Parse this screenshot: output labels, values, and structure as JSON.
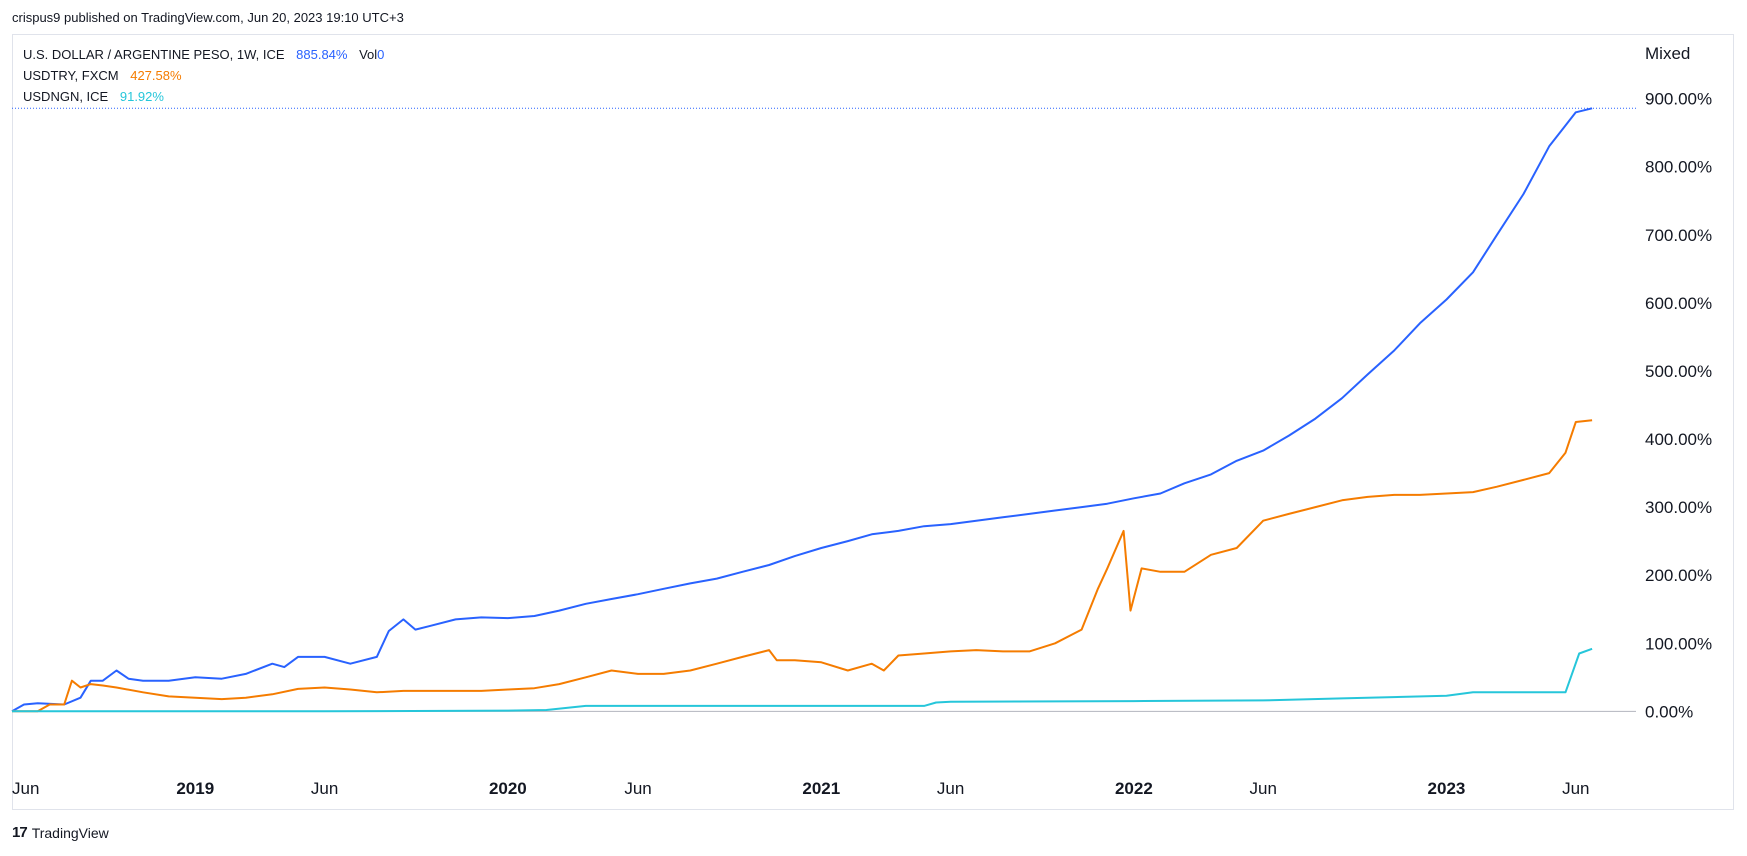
{
  "header": {
    "published_text": "crispus9 published on TradingView.com, Jun 20, 2023 19:10 UTC+3"
  },
  "legend": [
    {
      "label": "U.S. DOLLAR / ARGENTINE PESO, 1W, ICE",
      "value": "885.84%",
      "extra": "Vol",
      "extra_value": "0",
      "color": "#2962ff"
    },
    {
      "label": "USDTRY, FXCM",
      "value": "427.58%",
      "color": "#f57c00"
    },
    {
      "label": "USDNGN, ICE",
      "value": "91.92%",
      "color": "#26c6da"
    }
  ],
  "scale_mode": "Mixed",
  "footer": {
    "brand": "TradingView",
    "logo_icon": "tradingview-logo-icon"
  },
  "chart_data": {
    "type": "line",
    "y_unit": "%",
    "ylim": [
      -95,
      995
    ],
    "y_ticks": [
      "0.00%",
      "100.00%",
      "200.00%",
      "300.00%",
      "400.00%",
      "500.00%",
      "600.00%",
      "700.00%",
      "800.00%",
      "900.00%"
    ],
    "x_range": [
      "2018-06-01",
      "2023-06-20"
    ],
    "x_ticks": [
      {
        "date": "2018-06-01",
        "label": "Jun",
        "bold": false
      },
      {
        "date": "2019-01-01",
        "label": "2019",
        "bold": true
      },
      {
        "date": "2019-06-01",
        "label": "Jun",
        "bold": false
      },
      {
        "date": "2020-01-01",
        "label": "2020",
        "bold": true
      },
      {
        "date": "2020-06-01",
        "label": "Jun",
        "bold": false
      },
      {
        "date": "2021-01-01",
        "label": "2021",
        "bold": true
      },
      {
        "date": "2021-06-01",
        "label": "Jun",
        "bold": false
      },
      {
        "date": "2022-01-01",
        "label": "2022",
        "bold": true
      },
      {
        "date": "2022-06-01",
        "label": "Jun",
        "bold": false
      },
      {
        "date": "2023-01-01",
        "label": "2023",
        "bold": true
      },
      {
        "date": "2023-06-01",
        "label": "Jun",
        "bold": false
      }
    ],
    "zero_line": true,
    "series": [
      {
        "name": "U.S. DOLLAR / ARGENTINE PESO, 1W, ICE",
        "color": "#2962ff",
        "last_value": 885.84,
        "points": [
          [
            "2018-06-01",
            0
          ],
          [
            "2018-06-15",
            10
          ],
          [
            "2018-07-01",
            12
          ],
          [
            "2018-08-01",
            10
          ],
          [
            "2018-08-20",
            20
          ],
          [
            "2018-09-01",
            45
          ],
          [
            "2018-09-15",
            45
          ],
          [
            "2018-10-01",
            60
          ],
          [
            "2018-10-15",
            48
          ],
          [
            "2018-11-01",
            45
          ],
          [
            "2018-12-01",
            45
          ],
          [
            "2019-01-01",
            50
          ],
          [
            "2019-02-01",
            48
          ],
          [
            "2019-03-01",
            55
          ],
          [
            "2019-04-01",
            70
          ],
          [
            "2019-04-15",
            65
          ],
          [
            "2019-05-01",
            80
          ],
          [
            "2019-06-01",
            80
          ],
          [
            "2019-07-01",
            70
          ],
          [
            "2019-08-01",
            80
          ],
          [
            "2019-08-15",
            118
          ],
          [
            "2019-09-01",
            135
          ],
          [
            "2019-09-15",
            120
          ],
          [
            "2019-10-01",
            125
          ],
          [
            "2019-11-01",
            135
          ],
          [
            "2019-12-01",
            138
          ],
          [
            "2020-01-01",
            137
          ],
          [
            "2020-02-01",
            140
          ],
          [
            "2020-03-01",
            148
          ],
          [
            "2020-04-01",
            158
          ],
          [
            "2020-05-01",
            165
          ],
          [
            "2020-06-01",
            172
          ],
          [
            "2020-07-01",
            180
          ],
          [
            "2020-08-01",
            188
          ],
          [
            "2020-09-01",
            195
          ],
          [
            "2020-10-01",
            205
          ],
          [
            "2020-11-01",
            215
          ],
          [
            "2020-12-01",
            228
          ],
          [
            "2021-01-01",
            240
          ],
          [
            "2021-02-01",
            250
          ],
          [
            "2021-03-01",
            260
          ],
          [
            "2021-04-01",
            265
          ],
          [
            "2021-05-01",
            272
          ],
          [
            "2021-06-01",
            275
          ],
          [
            "2021-07-01",
            280
          ],
          [
            "2021-08-01",
            285
          ],
          [
            "2021-09-01",
            290
          ],
          [
            "2021-10-01",
            295
          ],
          [
            "2021-11-01",
            300
          ],
          [
            "2021-12-01",
            305
          ],
          [
            "2022-01-01",
            313
          ],
          [
            "2022-02-01",
            320
          ],
          [
            "2022-03-01",
            335
          ],
          [
            "2022-04-01",
            348
          ],
          [
            "2022-05-01",
            368
          ],
          [
            "2022-06-01",
            383
          ],
          [
            "2022-07-01",
            405
          ],
          [
            "2022-08-01",
            430
          ],
          [
            "2022-09-01",
            460
          ],
          [
            "2022-10-01",
            495
          ],
          [
            "2022-11-01",
            530
          ],
          [
            "2022-12-01",
            570
          ],
          [
            "2023-01-01",
            605
          ],
          [
            "2023-02-01",
            645
          ],
          [
            "2023-03-01",
            700
          ],
          [
            "2023-04-01",
            760
          ],
          [
            "2023-05-01",
            830
          ],
          [
            "2023-06-01",
            880
          ],
          [
            "2023-06-20",
            885.84
          ]
        ]
      },
      {
        "name": "USDTRY, FXCM",
        "color": "#f57c00",
        "last_value": 427.58,
        "points": [
          [
            "2018-06-01",
            0
          ],
          [
            "2018-07-01",
            0
          ],
          [
            "2018-07-15",
            10
          ],
          [
            "2018-08-01",
            10
          ],
          [
            "2018-08-10",
            45
          ],
          [
            "2018-08-20",
            35
          ],
          [
            "2018-09-01",
            40
          ],
          [
            "2018-09-15",
            38
          ],
          [
            "2018-10-01",
            35
          ],
          [
            "2018-11-01",
            28
          ],
          [
            "2018-12-01",
            22
          ],
          [
            "2019-01-01",
            20
          ],
          [
            "2019-02-01",
            18
          ],
          [
            "2019-03-01",
            20
          ],
          [
            "2019-04-01",
            25
          ],
          [
            "2019-05-01",
            33
          ],
          [
            "2019-06-01",
            35
          ],
          [
            "2019-07-01",
            32
          ],
          [
            "2019-08-01",
            28
          ],
          [
            "2019-09-01",
            30
          ],
          [
            "2019-10-01",
            30
          ],
          [
            "2019-11-01",
            30
          ],
          [
            "2019-12-01",
            30
          ],
          [
            "2020-01-01",
            32
          ],
          [
            "2020-02-01",
            34
          ],
          [
            "2020-03-01",
            40
          ],
          [
            "2020-04-01",
            50
          ],
          [
            "2020-05-01",
            60
          ],
          [
            "2020-06-01",
            55
          ],
          [
            "2020-07-01",
            55
          ],
          [
            "2020-08-01",
            60
          ],
          [
            "2020-09-01",
            70
          ],
          [
            "2020-10-01",
            80
          ],
          [
            "2020-11-01",
            90
          ],
          [
            "2020-11-10",
            75
          ],
          [
            "2020-12-01",
            75
          ],
          [
            "2021-01-01",
            72
          ],
          [
            "2021-02-01",
            60
          ],
          [
            "2021-03-01",
            70
          ],
          [
            "2021-03-15",
            60
          ],
          [
            "2021-04-01",
            82
          ],
          [
            "2021-05-01",
            85
          ],
          [
            "2021-06-01",
            88
          ],
          [
            "2021-07-01",
            90
          ],
          [
            "2021-08-01",
            88
          ],
          [
            "2021-09-01",
            88
          ],
          [
            "2021-10-01",
            100
          ],
          [
            "2021-11-01",
            120
          ],
          [
            "2021-11-20",
            180
          ],
          [
            "2021-12-01",
            210
          ],
          [
            "2021-12-20",
            265
          ],
          [
            "2021-12-28",
            148
          ],
          [
            "2022-01-10",
            210
          ],
          [
            "2022-02-01",
            205
          ],
          [
            "2022-03-01",
            205
          ],
          [
            "2022-04-01",
            230
          ],
          [
            "2022-05-01",
            240
          ],
          [
            "2022-06-01",
            280
          ],
          [
            "2022-07-01",
            290
          ],
          [
            "2022-08-01",
            300
          ],
          [
            "2022-09-01",
            310
          ],
          [
            "2022-10-01",
            315
          ],
          [
            "2022-11-01",
            318
          ],
          [
            "2022-12-01",
            318
          ],
          [
            "2023-01-01",
            320
          ],
          [
            "2023-02-01",
            322
          ],
          [
            "2023-03-01",
            330
          ],
          [
            "2023-04-01",
            340
          ],
          [
            "2023-05-01",
            350
          ],
          [
            "2023-05-20",
            380
          ],
          [
            "2023-06-01",
            425
          ],
          [
            "2023-06-20",
            427.58
          ]
        ]
      },
      {
        "name": "USDNGN, ICE",
        "color": "#26c6da",
        "last_value": 91.92,
        "points": [
          [
            "2018-06-01",
            0
          ],
          [
            "2019-01-01",
            0
          ],
          [
            "2019-06-01",
            0
          ],
          [
            "2020-01-01",
            1
          ],
          [
            "2020-02-15",
            2
          ],
          [
            "2020-04-01",
            8
          ],
          [
            "2020-06-01",
            8
          ],
          [
            "2020-08-01",
            8
          ],
          [
            "2020-10-01",
            8
          ],
          [
            "2021-01-01",
            8
          ],
          [
            "2021-05-01",
            8
          ],
          [
            "2021-05-15",
            13
          ],
          [
            "2021-06-01",
            14
          ],
          [
            "2022-01-01",
            15
          ],
          [
            "2022-06-01",
            16
          ],
          [
            "2022-09-01",
            19
          ],
          [
            "2023-01-01",
            23
          ],
          [
            "2023-02-01",
            28
          ],
          [
            "2023-05-20",
            28
          ],
          [
            "2023-06-05",
            85
          ],
          [
            "2023-06-20",
            91.92
          ]
        ]
      }
    ]
  }
}
